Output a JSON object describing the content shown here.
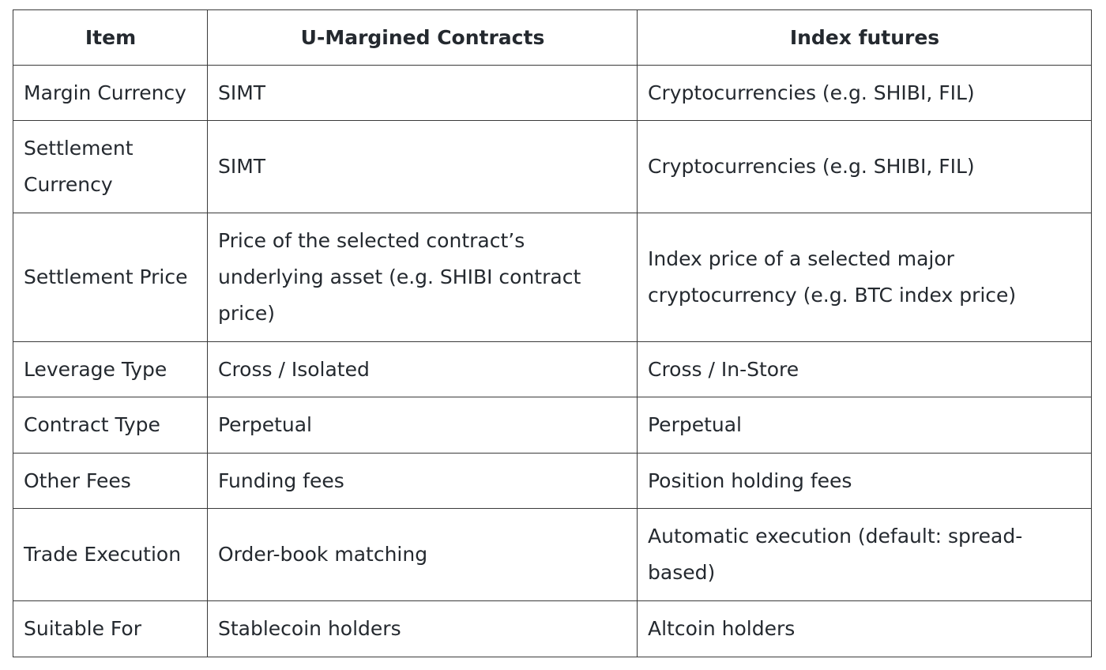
{
  "table": {
    "header": [
      "Item",
      "U-Margined Contracts",
      "Index futures"
    ],
    "rows": [
      [
        "Margin Currency",
        "SIMT",
        "Cryptocurrencies (e.g. SHIBI, FIL)"
      ],
      [
        "Settlement Currency",
        "SIMT",
        "Cryptocurrencies (e.g. SHIBI, FIL)"
      ],
      [
        "Settlement Price",
        "Price of the selected contract’s underlying asset (e.g. SHIBI contract price)",
        "Index price of a selected major cryptocurrency (e.g. BTC index price)"
      ],
      [
        "Leverage Type",
        "Cross / Isolated",
        "Cross / In-Store"
      ],
      [
        "Contract Type",
        "Perpetual",
        "Perpetual"
      ],
      [
        "Other Fees",
        "Funding fees",
        "Position holding fees"
      ],
      [
        "Trade Execution",
        "Order-book matching",
        "Automatic execution (default: spread-based)"
      ],
      [
        "Suitable For",
        "Stablecoin holders",
        "Altcoin holders"
      ]
    ]
  }
}
